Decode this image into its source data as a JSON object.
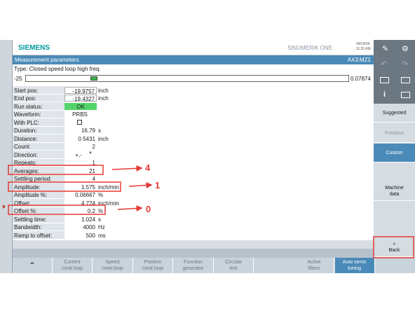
{
  "header": {
    "brand": "SIEMENS",
    "product": "SINUMERIK ONE",
    "date": "09/14/26",
    "time": "11:31 AM"
  },
  "title_bar": {
    "title": "Measurement parameters",
    "axis": "AX3:MZ1"
  },
  "type_line": "Type: Closed speed loop high freq.",
  "slider": {
    "min": "-25",
    "max": "0.07874"
  },
  "parameters": [
    {
      "label": "Start pos:",
      "value": "-19.9757",
      "unit": "inch"
    },
    {
      "label": "End pos:",
      "value": "-19.4327",
      "unit": "inch"
    },
    {
      "label": "Run status:",
      "value": "OK"
    },
    {
      "label": "Waveform:",
      "value": "PRBS"
    },
    {
      "label": "With PLC:"
    },
    {
      "label": "Duration:",
      "value": "16.79",
      "unit": "s"
    },
    {
      "label": "Distance:",
      "value": "0.5431",
      "unit": "inch"
    },
    {
      "label": "Count:",
      "value": "2"
    },
    {
      "label": "Direction:",
      "value": "+,-"
    },
    {
      "label": "Repeats:",
      "value": "1"
    },
    {
      "label": "Averages:",
      "value": "21"
    },
    {
      "label": "Settling period:",
      "value": "4"
    },
    {
      "label": "Amplitude:",
      "value": "1.575",
      "unit": "inch/min"
    },
    {
      "label": "Amplitude %:",
      "value": "0.06667",
      "unit": "%"
    },
    {
      "label": "Offset:",
      "value": "4.724",
      "unit": "inch/min"
    },
    {
      "label": "Offset %:",
      "value": "0.2",
      "unit": "%"
    },
    {
      "label": "Settling time:",
      "value": "1.024",
      "unit": "s"
    },
    {
      "label": "Bandwidth:",
      "value": "4000",
      "unit": "Hz"
    },
    {
      "label": "Ramp to offset:",
      "value": "500",
      "unit": "ms"
    }
  ],
  "right_softkeys": [
    "Suggested",
    "Previous",
    "Custom",
    "Machine\ndata",
    "«\nBack"
  ],
  "bottom_softkeys": [
    "Current\ncontr.loop",
    "Speed\ncontr.loop",
    "Position\ncontr.loop",
    "Function\ngenerator",
    "Circular\ntest",
    "Active\nfilters",
    "Auto servo\ntuning"
  ],
  "annotations": [
    "4",
    "1",
    "0"
  ]
}
